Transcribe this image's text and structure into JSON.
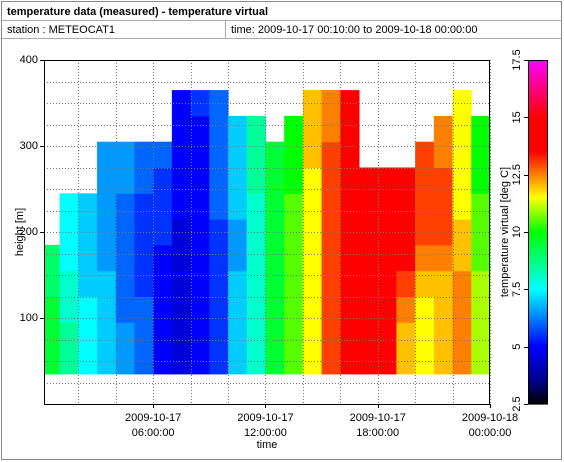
{
  "chart_data": {
    "type": "heatmap",
    "title": "temperature data (measured) - temperature virtual",
    "station": "station : METEOCAT1",
    "period": "time: 2009-10-17 00:10:00 to 2009-10-18 00:00:00",
    "xlabel": "time",
    "ylabel": "height [m]",
    "colorbar_label": "temperature virtual [deg C]",
    "xlim": [
      "2009-10-17T00:10:00",
      "2009-10-18T00:00:00"
    ],
    "xticks": [
      {
        "value": "2009-10-17T06:00:00",
        "label": [
          "2009-10-17",
          "06:00:00"
        ]
      },
      {
        "value": "2009-10-17T12:00:00",
        "label": [
          "2009-10-17",
          "12:00:00"
        ]
      },
      {
        "value": "2009-10-17T18:00:00",
        "label": [
          "2009-10-17",
          "18:00:00"
        ]
      },
      {
        "value": "2009-10-18T00:00:00",
        "label": [
          "2009-10-18",
          "00:00:00"
        ]
      }
    ],
    "xminorticks": [
      "2009-10-17T02:00:00",
      "2009-10-17T04:00:00",
      "2009-10-17T08:00:00",
      "2009-10-17T10:00:00",
      "2009-10-17T14:00:00",
      "2009-10-17T16:00:00",
      "2009-10-17T20:00:00",
      "2009-10-17T22:00:00"
    ],
    "ylim": [
      0,
      400
    ],
    "yticks": [
      100,
      200,
      300,
      400
    ],
    "yminorticks": [
      25,
      50,
      75,
      125,
      150,
      175,
      225,
      250,
      275,
      325,
      350,
      375
    ],
    "grid": true,
    "clim": [
      2.5,
      17.5
    ],
    "cticks": [
      2.5,
      5,
      7.5,
      10,
      12.5,
      15,
      17.5
    ],
    "colorscale": [
      [
        2.5,
        "#000000"
      ],
      [
        3.5,
        "#00008b"
      ],
      [
        5,
        "#0000ff"
      ],
      [
        7.5,
        "#00ffff"
      ],
      [
        10,
        "#00ff00"
      ],
      [
        11.5,
        "#ffff00"
      ],
      [
        12.5,
        "#ff8000"
      ],
      [
        13.5,
        "#ff0000"
      ],
      [
        15,
        "#ff0000"
      ],
      [
        17.5,
        "#ff00ff"
      ]
    ],
    "ybins": [
      35,
      65,
      95,
      125,
      155,
      185,
      215,
      245,
      275,
      305,
      335,
      365
    ],
    "xbins": [
      "2009-10-17T00:10:00",
      "2009-10-17T01:00:00",
      "2009-10-17T02:00:00",
      "2009-10-17T03:00:00",
      "2009-10-17T04:00:00",
      "2009-10-17T05:00:00",
      "2009-10-17T06:00:00",
      "2009-10-17T07:00:00",
      "2009-10-17T08:00:00",
      "2009-10-17T09:00:00",
      "2009-10-17T10:00:00",
      "2009-10-17T11:00:00",
      "2009-10-17T12:00:00",
      "2009-10-17T13:00:00",
      "2009-10-17T14:00:00",
      "2009-10-17T15:00:00",
      "2009-10-17T16:00:00",
      "2009-10-17T17:00:00",
      "2009-10-17T18:00:00",
      "2009-10-17T19:00:00",
      "2009-10-17T20:00:00",
      "2009-10-17T21:00:00",
      "2009-10-17T22:00:00",
      "2009-10-17T23:00:00",
      "2009-10-18T00:00:00"
    ],
    "values": [
      [
        9.5,
        9.5,
        9.5,
        9,
        9,
        null,
        null,
        null,
        null,
        null,
        null
      ],
      [
        8.5,
        8.5,
        8,
        8,
        7.5,
        7.5,
        7.5,
        null,
        null,
        null,
        null
      ],
      [
        7.5,
        7.5,
        7.5,
        7,
        7,
        7,
        7,
        null,
        null,
        null,
        null
      ],
      [
        7,
        7,
        7,
        7,
        6.5,
        6.5,
        6.5,
        6.5,
        6.5,
        null,
        null
      ],
      [
        6.5,
        6.5,
        6,
        6,
        6,
        6,
        6,
        6.5,
        6.5,
        null,
        null
      ],
      [
        6,
        6,
        6,
        5.5,
        5.5,
        5.5,
        5.5,
        6,
        6,
        null,
        null
      ],
      [
        5,
        5,
        5,
        5,
        5,
        5.5,
        5.5,
        5.5,
        6,
        null,
        null
      ],
      [
        4.5,
        4.5,
        4.5,
        4.5,
        4.5,
        4.5,
        5,
        5,
        5,
        5,
        5
      ],
      [
        5,
        5,
        5,
        5,
        5,
        5,
        5,
        5,
        5,
        5,
        5.5
      ],
      [
        5.5,
        5.5,
        5.5,
        5.5,
        5.5,
        5.5,
        6,
        6,
        6,
        6,
        6
      ],
      [
        7,
        7,
        7,
        7,
        6.5,
        6.5,
        7,
        7,
        7,
        7,
        null
      ],
      [
        8,
        8,
        8,
        8,
        8,
        8,
        8,
        8.5,
        8.5,
        8.5,
        null
      ],
      [
        9.5,
        9.5,
        9.5,
        9.5,
        9.5,
        9.5,
        9.5,
        9.5,
        9.5,
        null,
        null
      ],
      [
        10.5,
        10.5,
        10.5,
        10.5,
        10.5,
        10.5,
        10.5,
        10,
        10,
        10,
        null
      ],
      [
        11.5,
        11.5,
        11.5,
        11.5,
        11.5,
        11.5,
        11.5,
        11.5,
        12,
        12,
        12
      ],
      [
        13,
        13,
        13,
        13,
        13,
        13,
        13,
        13,
        13,
        12.5,
        12.5
      ],
      [
        14,
        14,
        14,
        14,
        14,
        14,
        14,
        14,
        13.5,
        13.5,
        13.5
      ],
      [
        14.5,
        14.5,
        14.5,
        14.5,
        14.5,
        14.5,
        14.5,
        14,
        null,
        null,
        null
      ],
      [
        14,
        14,
        14,
        14,
        14,
        13.5,
        13.5,
        13.5,
        null,
        null,
        null
      ],
      [
        12,
        12,
        12.5,
        13,
        13.5,
        13.5,
        13.5,
        13.5,
        null,
        null,
        null
      ],
      [
        11.5,
        11.5,
        11.5,
        12,
        12.5,
        13,
        13,
        13,
        13,
        null,
        null
      ],
      [
        12,
        12,
        12,
        12,
        12.5,
        13,
        13,
        13,
        12.5,
        12.5,
        null
      ],
      [
        12.5,
        12.5,
        12.5,
        12.5,
        12,
        12,
        11.5,
        11.5,
        11.5,
        11.5,
        11.5
      ],
      [
        11,
        11,
        11,
        11,
        10.5,
        10.5,
        10.5,
        10,
        10,
        10,
        null
      ]
    ]
  }
}
